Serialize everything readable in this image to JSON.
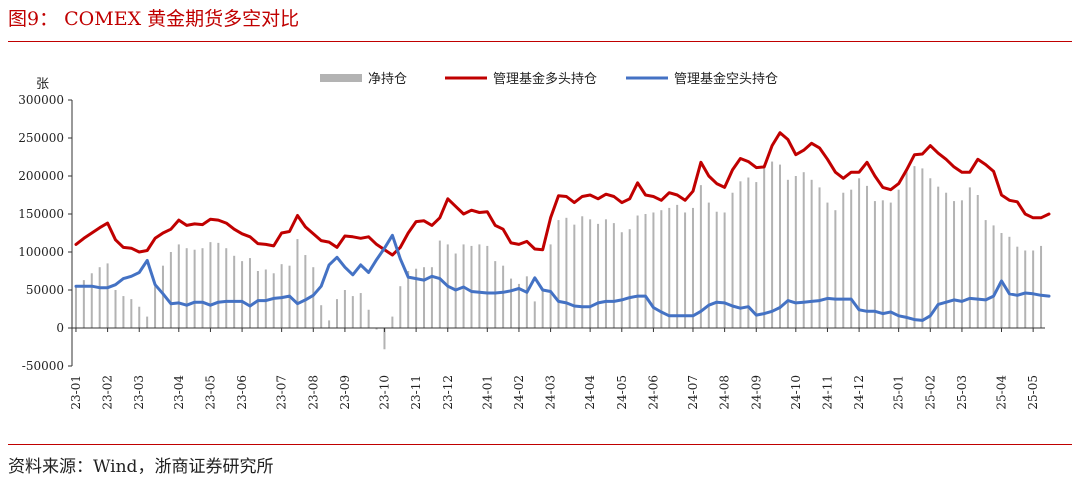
{
  "figure": {
    "title": "图9： COMEX 黄金期货多空对比",
    "source": "资料来源：Wind，浙商证券研究所"
  },
  "chart_data": {
    "type": "bar+line",
    "unit_label": "张",
    "ylim": [
      -50000,
      300000
    ],
    "yticks": [
      300000,
      250000,
      200000,
      150000,
      100000,
      50000,
      0,
      -50000
    ],
    "x_ticks": [
      "23-01",
      "23-02",
      "23-03",
      "23-04",
      "23-05",
      "23-06",
      "23-07",
      "23-08",
      "23-09",
      "23-10",
      "23-11",
      "23-12",
      "24-01",
      "24-02",
      "24-03",
      "24-04",
      "24-05",
      "24-06",
      "24-07",
      "24-08",
      "24-09",
      "24-10",
      "24-11",
      "24-12",
      "25-01",
      "25-02",
      "25-03",
      "25-04",
      "25-05"
    ],
    "x_tick_index": [
      0,
      4,
      8,
      13,
      17,
      21,
      26,
      30,
      34,
      39,
      43,
      47,
      52,
      56,
      60,
      65,
      69,
      73,
      78,
      82,
      86,
      91,
      95,
      99,
      104,
      108,
      112,
      117,
      121
    ],
    "legend_position": "top",
    "series": [
      {
        "name": "净持仓",
        "kind": "bar",
        "color": "#b3b3b3",
        "values": [
          55000,
          63000,
          72000,
          80000,
          85000,
          50000,
          42000,
          38000,
          28000,
          15000,
          55000,
          82000,
          100000,
          110000,
          105000,
          103000,
          105000,
          113000,
          112000,
          105000,
          95000,
          88000,
          92000,
          75000,
          77000,
          72000,
          84000,
          82000,
          117000,
          96000,
          80000,
          30000,
          10000,
          38000,
          50000,
          42000,
          46000,
          24000,
          -2000,
          -28000,
          15000,
          55000,
          75000,
          78000,
          80000,
          80000,
          115000,
          110000,
          98000,
          110000,
          108000,
          110000,
          108000,
          88000,
          82000,
          65000,
          58000,
          68000,
          35000,
          50000,
          110000,
          142000,
          145000,
          136000,
          147000,
          143000,
          137000,
          143000,
          138000,
          126000,
          130000,
          148000,
          150000,
          152000,
          155000,
          158000,
          162000,
          152000,
          158000,
          188000,
          165000,
          153000,
          152000,
          178000,
          193000,
          198000,
          192000,
          215000,
          219000,
          215000,
          195000,
          200000,
          205000,
          195000,
          185000,
          165000,
          155000,
          178000,
          182000,
          197000,
          187000,
          167000,
          168000,
          165000,
          182000,
          210000,
          213000,
          210000,
          197000,
          186000,
          178000,
          167000,
          168000,
          185000,
          175000,
          142000,
          135000,
          125000,
          120000,
          107000,
          102000,
          102000,
          108000
        ]
      },
      {
        "name": "管理基金多头持仓",
        "kind": "line",
        "color": "#c00000",
        "values": [
          110000,
          118000,
          125000,
          132000,
          138000,
          116000,
          106000,
          105000,
          100000,
          102000,
          118000,
          125000,
          130000,
          142000,
          135000,
          137000,
          136000,
          143000,
          142000,
          138000,
          130000,
          124000,
          120000,
          111000,
          110000,
          108000,
          125000,
          127000,
          148000,
          133000,
          124000,
          115000,
          113000,
          106000,
          121000,
          120000,
          118000,
          120000,
          110000,
          103000,
          96000,
          106000,
          125000,
          140000,
          141000,
          135000,
          145000,
          170000,
          160000,
          150000,
          155000,
          152000,
          153000,
          135000,
          130000,
          112000,
          110000,
          114000,
          104000,
          103000,
          145000,
          174000,
          173000,
          165000,
          173000,
          175000,
          170000,
          176000,
          173000,
          165000,
          170000,
          191000,
          175000,
          173000,
          168000,
          178000,
          175000,
          168000,
          180000,
          218000,
          200000,
          190000,
          185000,
          208000,
          223000,
          219000,
          211000,
          212000,
          240000,
          257000,
          248000,
          228000,
          234000,
          243000,
          237000,
          222000,
          205000,
          197000,
          205000,
          205000,
          218000,
          200000,
          185000,
          182000,
          190000,
          208000,
          228000,
          229000,
          240000,
          230000,
          222000,
          212000,
          205000,
          205000,
          222000,
          215000,
          206000,
          175000,
          168000,
          166000,
          150000,
          145000,
          145000,
          150000
        ]
      },
      {
        "name": "管理基金空头持仓",
        "kind": "line",
        "color": "#4472c4",
        "values": [
          55000,
          55000,
          55000,
          53000,
          53000,
          57000,
          65000,
          68000,
          73000,
          89000,
          57000,
          45000,
          32000,
          33000,
          30000,
          34000,
          34000,
          30000,
          34000,
          35000,
          35000,
          35000,
          29000,
          36000,
          36000,
          39000,
          40000,
          42000,
          32000,
          37000,
          43000,
          55000,
          83000,
          93000,
          80000,
          70000,
          83000,
          73000,
          90000,
          105000,
          122000,
          91000,
          67000,
          65000,
          63000,
          68000,
          65000,
          55000,
          50000,
          54000,
          48000,
          47000,
          46000,
          46000,
          47000,
          49000,
          52000,
          47000,
          66000,
          50000,
          48000,
          35000,
          33000,
          29000,
          28000,
          28000,
          33000,
          35000,
          35000,
          37000,
          40000,
          42000,
          42000,
          27000,
          21000,
          16000,
          16000,
          16000,
          16000,
          22000,
          30000,
          34000,
          33000,
          29000,
          26000,
          28000,
          17000,
          19000,
          22000,
          27000,
          36000,
          33000,
          34000,
          35000,
          36000,
          39000,
          38000,
          38000,
          38000,
          24000,
          22000,
          22000,
          19000,
          21000,
          16000,
          14000,
          11000,
          10000,
          16000,
          31000,
          34000,
          37000,
          35000,
          39000,
          38000,
          37000,
          42000,
          62000,
          45000,
          43000,
          46000,
          45000,
          43000,
          42000
        ]
      }
    ]
  }
}
